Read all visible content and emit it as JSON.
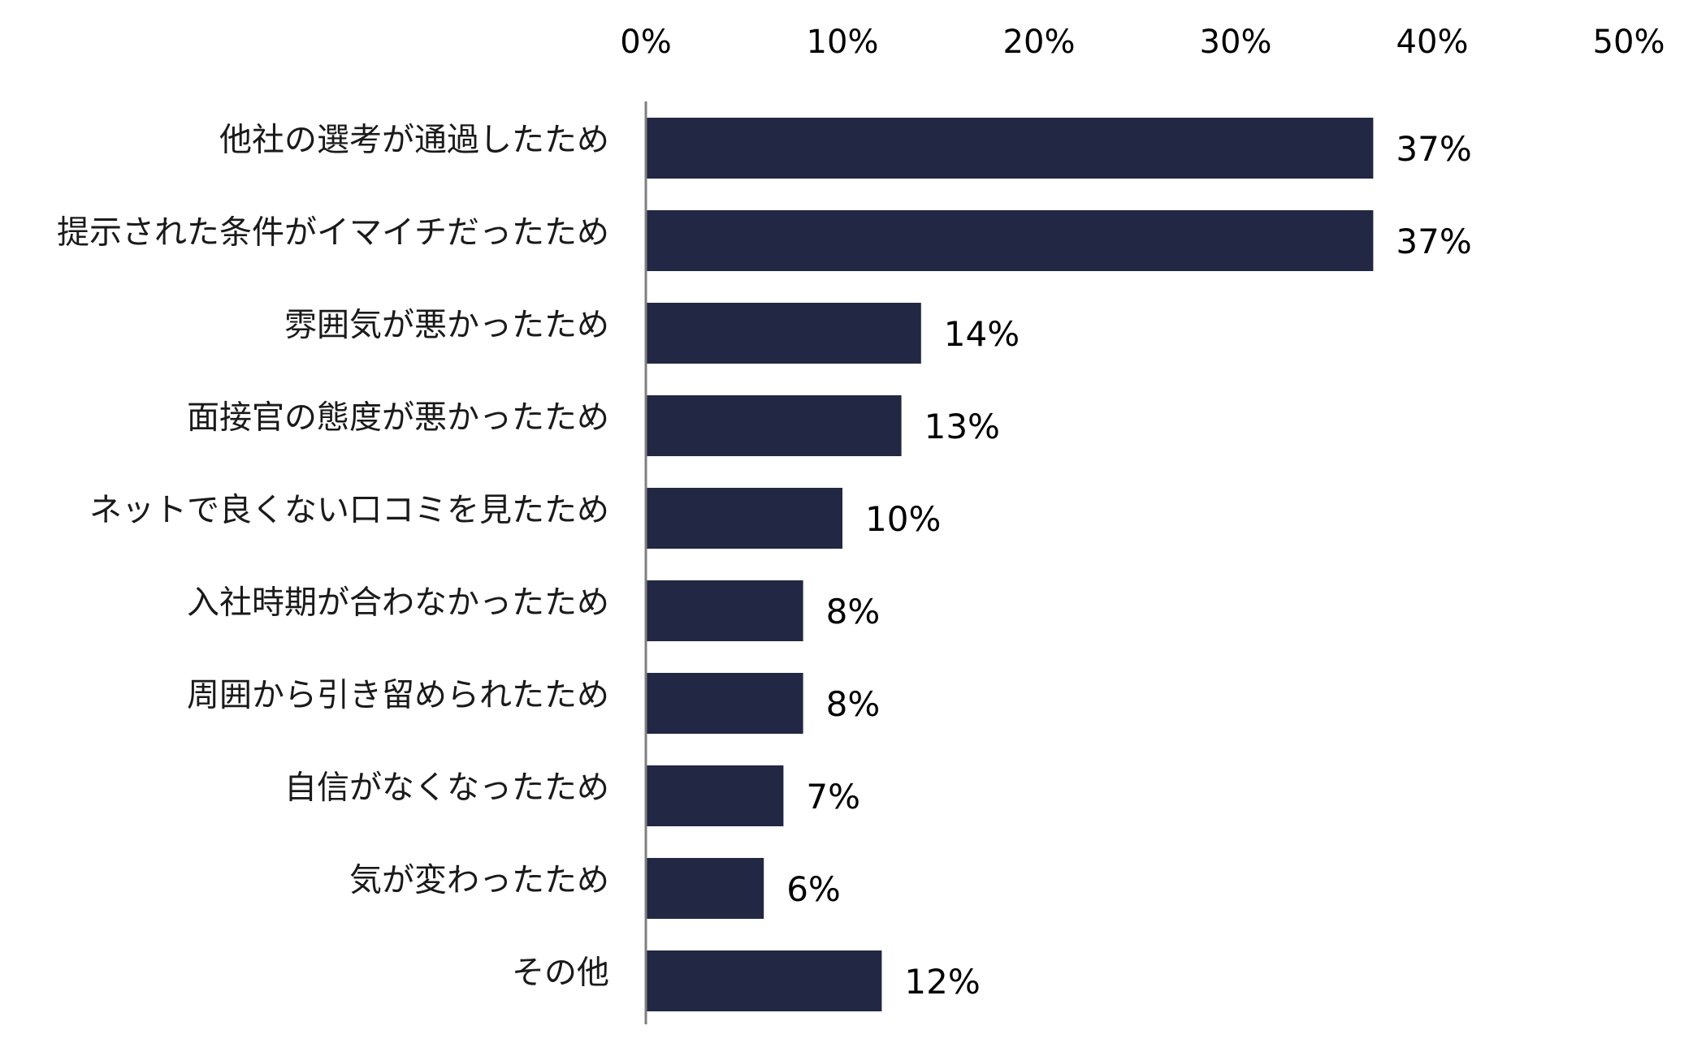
{
  "chart_data": {
    "type": "bar",
    "orientation": "horizontal",
    "categories": [
      "他社の選考が通過したため",
      "提示された条件がイマイチだったため",
      "雰囲気が悪かったため",
      "面接官の態度が悪かったため",
      "ネットで良くない口コミを見たため",
      "入社時期が合わなかったため",
      "周囲から引き留められたため",
      "自信がなくなったため",
      "気が変わったため",
      "その他"
    ],
    "values": [
      37,
      37,
      14,
      13,
      10,
      8,
      8,
      7,
      6,
      12
    ],
    "value_labels": [
      "37%",
      "37%",
      "14%",
      "13%",
      "10%",
      "8%",
      "8%",
      "7%",
      "6%",
      "12%"
    ],
    "xlim": [
      0,
      50
    ],
    "x_ticks": [
      0,
      10,
      20,
      30,
      40,
      50
    ],
    "x_tick_labels": [
      "0%",
      "10%",
      "20%",
      "30%",
      "40%",
      "50%"
    ],
    "x_axis_position": "top",
    "grid": false,
    "legend": "none",
    "bar_color": "#222743",
    "axis_color": "#7f7f7f"
  }
}
